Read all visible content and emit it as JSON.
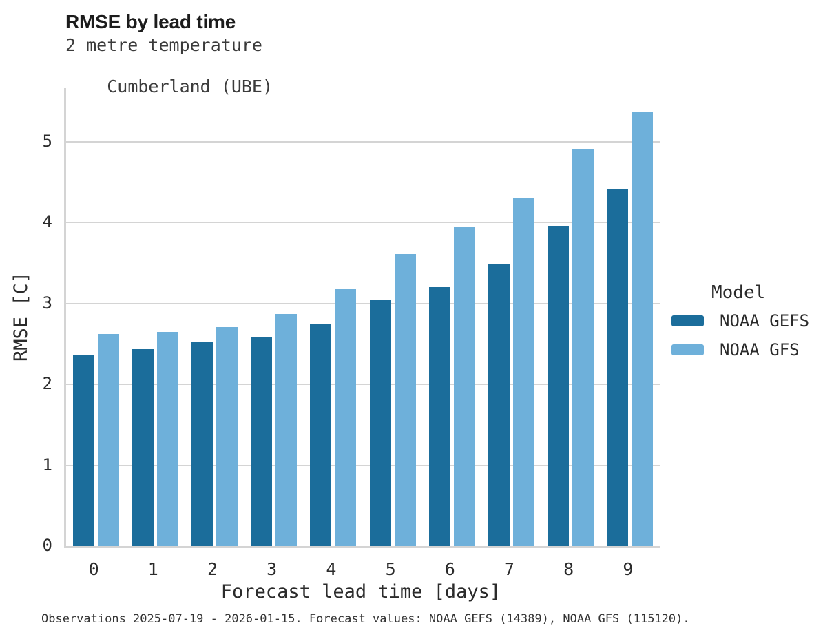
{
  "header": {
    "title": "RMSE by lead time",
    "subtitle_line1": "2 metre temperature",
    "subtitle_line2": "Cumberland (UBE)"
  },
  "caption": "Observations 2025-07-19 - 2026-01-15. Forecast values: NOAA GEFS (14389), NOAA GFS (115120).",
  "legend": {
    "title": "Model",
    "items": [
      {
        "label": "NOAA GEFS",
        "color": "#1b6d9b"
      },
      {
        "label": "NOAA GFS",
        "color": "#6eb0da"
      }
    ]
  },
  "colors": {
    "gefs_bar": "#1b6d9b",
    "gfs_bar": "#6eb0da",
    "gridline": "#d4d4d4",
    "spine": "#d4d4d4",
    "text": "#2b2b2b"
  },
  "chart_data": {
    "type": "bar",
    "title": "RMSE by lead time",
    "subtitle": [
      "2 metre temperature",
      "Cumberland (UBE)"
    ],
    "xlabel": "Forecast lead time [days]",
    "ylabel": "RMSE [C]",
    "categories": [
      "0",
      "1",
      "2",
      "3",
      "4",
      "5",
      "6",
      "7",
      "8",
      "9"
    ],
    "series": [
      {
        "name": "NOAA GEFS",
        "color": "#1b6d9b",
        "values": [
          2.37,
          2.43,
          2.52,
          2.58,
          2.74,
          3.04,
          3.2,
          3.49,
          3.96,
          4.42
        ]
      },
      {
        "name": "NOAA GFS",
        "color": "#6eb0da",
        "values": [
          2.62,
          2.65,
          2.71,
          2.87,
          3.18,
          3.61,
          3.94,
          4.3,
          4.9,
          5.36
        ]
      }
    ],
    "yticks": [
      0,
      1,
      2,
      3,
      4,
      5
    ],
    "ylim": [
      0,
      5.66
    ],
    "grid": "horizontal",
    "legend_position": "right",
    "legend_title": "Model"
  }
}
